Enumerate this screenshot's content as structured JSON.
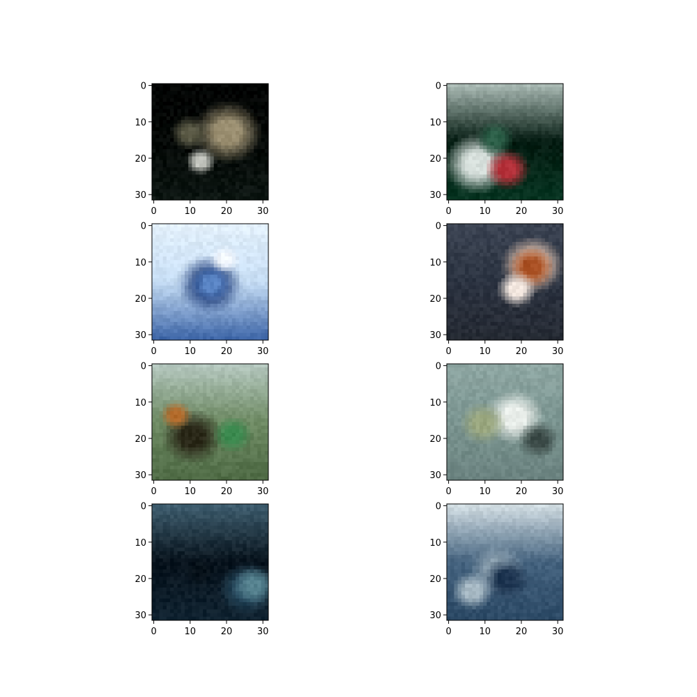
{
  "chart_data": {
    "type": "image_grid",
    "rows": 4,
    "cols": 2,
    "axes": {
      "x_ticks": [
        0,
        10,
        20,
        30
      ],
      "y_ticks": [
        0,
        10,
        20,
        30
      ],
      "xlim": [
        -0.5,
        31.5
      ],
      "ylim": [
        31.5,
        -0.5
      ],
      "origin": "upper"
    },
    "panels": [
      {
        "id": "r1c1",
        "description": "dark scene, near-black top, lighter patches lower left and lower right",
        "palette": {
          "bg": "#050907",
          "top": "#020403",
          "mid": "#0d1612",
          "accent1": "#9a8e70",
          "accent2": "#c4c6bf",
          "accent3": "#5b5a46"
        }
      },
      {
        "id": "r1c2",
        "description": "dark green scene with small light object and red spot",
        "palette": {
          "bg": "#031a10",
          "top": "#a8b8b2",
          "mid": "#073421",
          "accent1": "#d7e0dc",
          "accent2": "#b5313a",
          "accent3": "#2b5e47"
        }
      },
      {
        "id": "r2c1",
        "description": "blue object on pale sky background",
        "palette": {
          "bg": "#c5dcf3",
          "top": "#e3f0fb",
          "mid": "#3f67a8",
          "accent1": "#1f3d7a",
          "accent2": "#f1f6fd",
          "accent3": "#5a85c5"
        }
      },
      {
        "id": "r2c2",
        "description": "dark slate background with pale orange/white object",
        "palette": {
          "bg": "#2c3341",
          "top": "#3b4352",
          "mid": "#252a33",
          "accent1": "#e9cbb7",
          "accent2": "#a84f22",
          "accent3": "#f2e6de"
        }
      },
      {
        "id": "r3c1",
        "description": "green field with dark animal shape",
        "palette": {
          "bg": "#6e8a63",
          "top": "#b3c6bd",
          "mid": "#4f6b45",
          "accent1": "#2a2818",
          "accent2": "#b26a2a",
          "accent3": "#3b8a4f"
        }
      },
      {
        "id": "r3c2",
        "description": "grey-green background with white object",
        "palette": {
          "bg": "#7a9490",
          "top": "#8ea6a2",
          "mid": "#6b8380",
          "accent1": "#e9eeea",
          "accent2": "#9aa77f",
          "accent3": "#3b4a47"
        }
      },
      {
        "id": "r4c1",
        "description": "very dark blue/teal scene",
        "palette": {
          "bg": "#08131c",
          "top": "#3e5d6e",
          "mid": "#0f2230",
          "accent1": "#2a4e63",
          "accent2": "#061018",
          "accent3": "#56828f"
        }
      },
      {
        "id": "r4c2",
        "description": "blue-grey cluttered scene with pale top strip",
        "palette": {
          "bg": "#44627e",
          "top": "#d1dde2",
          "mid": "#2d4a66",
          "accent1": "#8a9fae",
          "accent2": "#1d3450",
          "accent3": "#a7b9c4"
        }
      }
    ]
  }
}
